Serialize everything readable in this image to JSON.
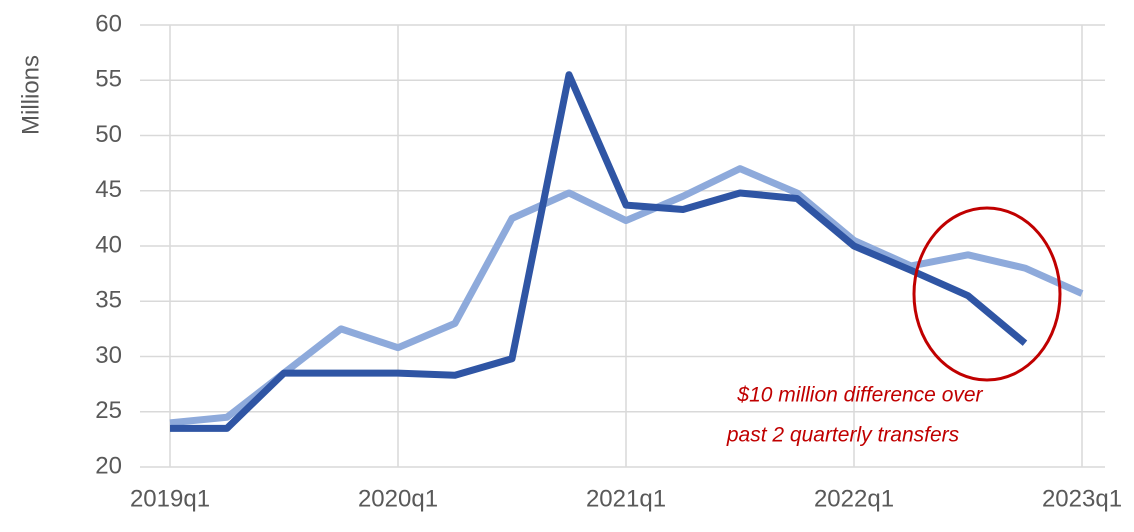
{
  "chart_data": {
    "type": "line",
    "y_label": "Millions",
    "categories": [
      "2019q1",
      null,
      null,
      null,
      "2020q1",
      null,
      null,
      null,
      "2021q1",
      null,
      null,
      null,
      "2022q1",
      null,
      null,
      null,
      "2023q1"
    ],
    "series": [
      {
        "color": "#8eaadb",
        "values": [
          24,
          24.5,
          28.5,
          32.5,
          30.8,
          33,
          42.5,
          44.8,
          42.3,
          44.5,
          47,
          44.8,
          40.5,
          38.2,
          39.2,
          38,
          35.7
        ]
      },
      {
        "color": "#2f55a4",
        "values": [
          23.5,
          23.5,
          28.5,
          28.5,
          28.5,
          28.3,
          29.8,
          55.5,
          43.7,
          43.3,
          44.8,
          44.3,
          40,
          37.8,
          35.5,
          31.2,
          null
        ]
      }
    ],
    "ylim": [
      20,
      60
    ],
    "yticks": [
      20,
      25,
      30,
      35,
      40,
      45,
      50,
      55,
      60
    ],
    "grid": true,
    "annotation": [
      "$10 million difference over",
      "past 2 quarterly transfers"
    ]
  }
}
